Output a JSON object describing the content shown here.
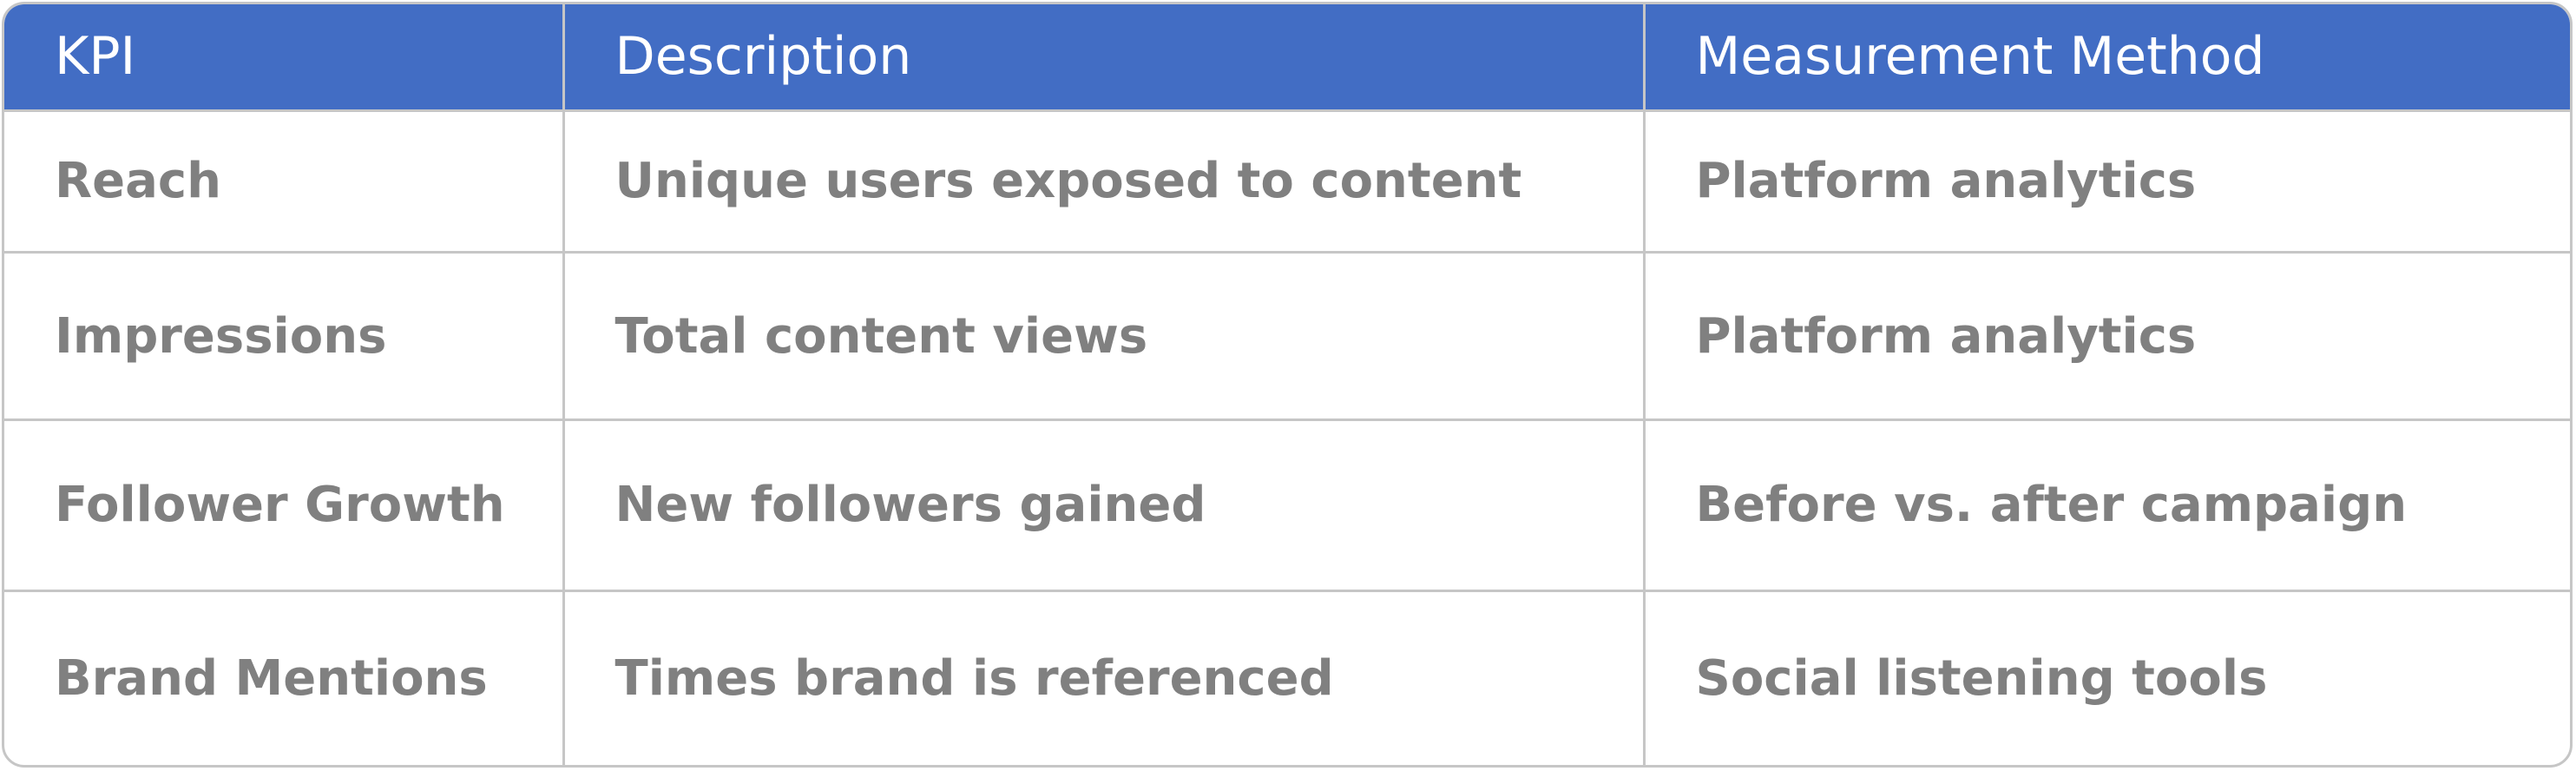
{
  "table": {
    "headers": [
      "KPI",
      "Description",
      "Measurement Method"
    ],
    "rows": [
      [
        "Reach",
        "Unique users exposed to content",
        "Platform analytics"
      ],
      [
        "Impressions",
        "Total content views",
        "Platform analytics"
      ],
      [
        "Follower Growth",
        "New followers gained",
        "Before vs. after campaign"
      ],
      [
        "Brand Mentions",
        "Times brand is referenced",
        "Social listening tools"
      ]
    ]
  },
  "colors": {
    "header_background": "#426dc4",
    "header_text": "#ffffff",
    "cell_text": "#808080",
    "border": "#c6c6c6"
  }
}
